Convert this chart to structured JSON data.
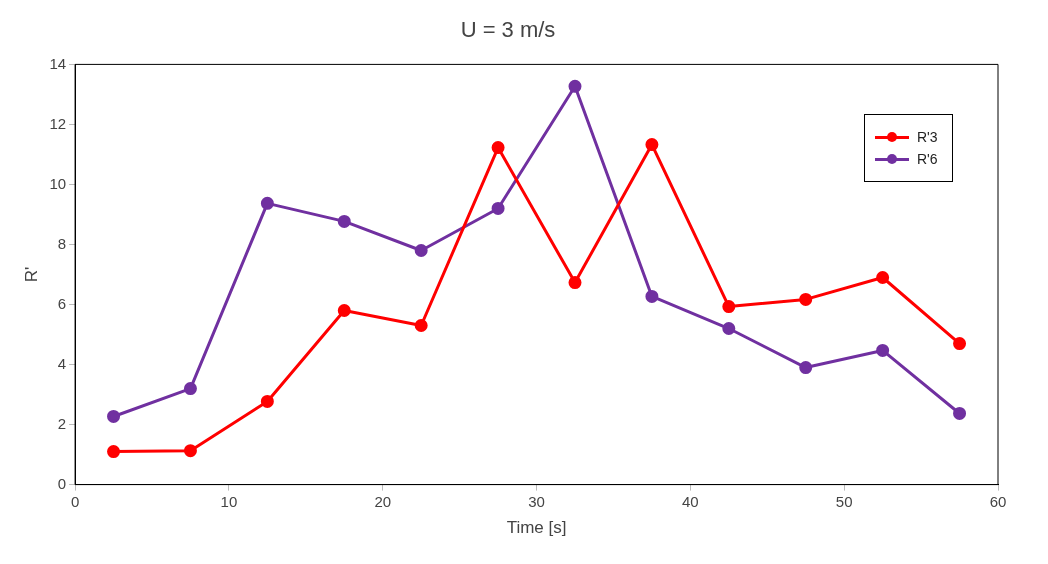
{
  "chart_data": {
    "type": "line",
    "title": "U = 3 m/s",
    "xlabel": "Time [s]",
    "ylabel": "R'",
    "x": [
      2.5,
      7.5,
      12.5,
      17.5,
      22.5,
      27.5,
      32.5,
      37.5,
      42.5,
      47.5,
      52.5,
      57.5
    ],
    "series": [
      {
        "name": "R'3",
        "color": "#ff0000",
        "values": [
          1.1,
          1.13,
          2.77,
          5.8,
          5.3,
          11.23,
          6.73,
          11.33,
          5.93,
          6.17,
          6.9,
          4.7
        ]
      },
      {
        "name": "R'6",
        "color": "#7030a0",
        "values": [
          2.27,
          3.2,
          9.37,
          8.77,
          7.8,
          9.2,
          13.27,
          6.27,
          5.2,
          3.9,
          4.47,
          2.37
        ]
      }
    ],
    "xlim": [
      0,
      60
    ],
    "xticks": [
      0,
      10,
      20,
      30,
      40,
      50,
      60
    ],
    "ylim": [
      0,
      14
    ],
    "yticks": [
      0,
      2,
      4,
      6,
      8,
      10,
      12,
      14
    ],
    "grid": false,
    "legend": "top right",
    "marker": "circle",
    "line_style": "solid"
  }
}
